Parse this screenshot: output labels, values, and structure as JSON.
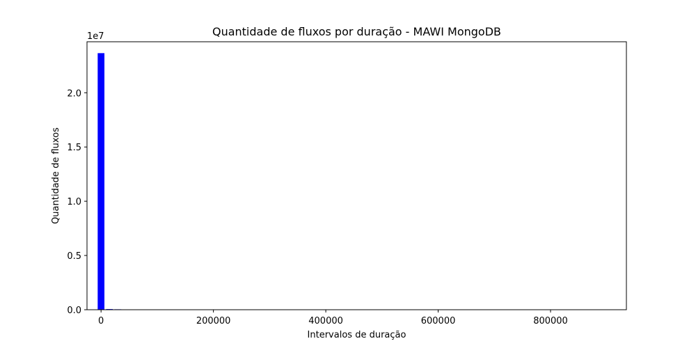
{
  "chart_data": {
    "type": "bar",
    "title": "Quantidade de fluxos por duração - MAWI MongoDB",
    "xlabel": "Intervalos de duração",
    "ylabel": "Quantidade de fluxos",
    "y_offset_label": "1e7",
    "y_scale": 10000000,
    "xlim": [
      -25000,
      935000
    ],
    "ylim": [
      0,
      24700000
    ],
    "x_ticks": [
      0,
      200000,
      400000,
      600000,
      800000
    ],
    "x_tick_labels": [
      "0",
      "200000",
      "400000",
      "600000",
      "800000"
    ],
    "y_ticks": [
      0,
      5000000,
      10000000,
      15000000,
      20000000
    ],
    "y_tick_labels": [
      "0.0",
      "0.5",
      "1.0",
      "1.5",
      "2.0"
    ],
    "bar_width": 12000,
    "bar_color": "#0000ff",
    "grid": false,
    "bars": [
      {
        "x": 0,
        "value": 23650000
      },
      {
        "x": 15000,
        "value": 60000
      },
      {
        "x": 30000,
        "value": 40000
      },
      {
        "x": 660000,
        "value": 30000
      }
    ]
  }
}
